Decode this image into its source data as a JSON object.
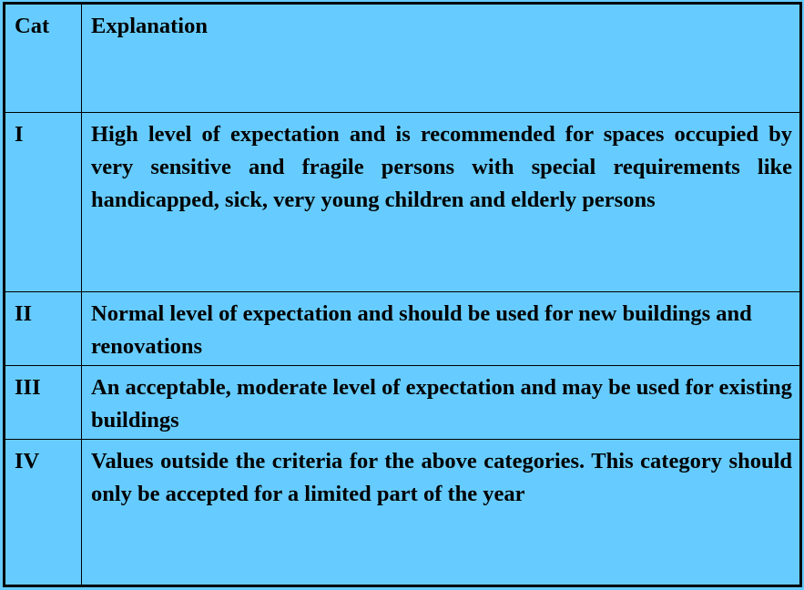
{
  "table": {
    "headers": {
      "cat": "Cat",
      "explanation": "Explanation"
    },
    "rows": [
      {
        "cat": "I",
        "explanation": "High level of expectation and is recommended for spaces occupied by very sensitive and fragile persons with special requirements like handicapped, sick, very young children and elderly persons"
      },
      {
        "cat": "II",
        "explanation": "Normal level of expectation and should be used for new buildings and renovations"
      },
      {
        "cat": "III",
        "explanation": "An acceptable, moderate level of expectation and may be used for existing buildings"
      },
      {
        "cat": "IV",
        "explanation": "Values outside the criteria for the above categories. This category should only be accepted for a limited part of the year"
      }
    ]
  },
  "colors": {
    "background": "#66CCFF",
    "border": "#000000"
  }
}
